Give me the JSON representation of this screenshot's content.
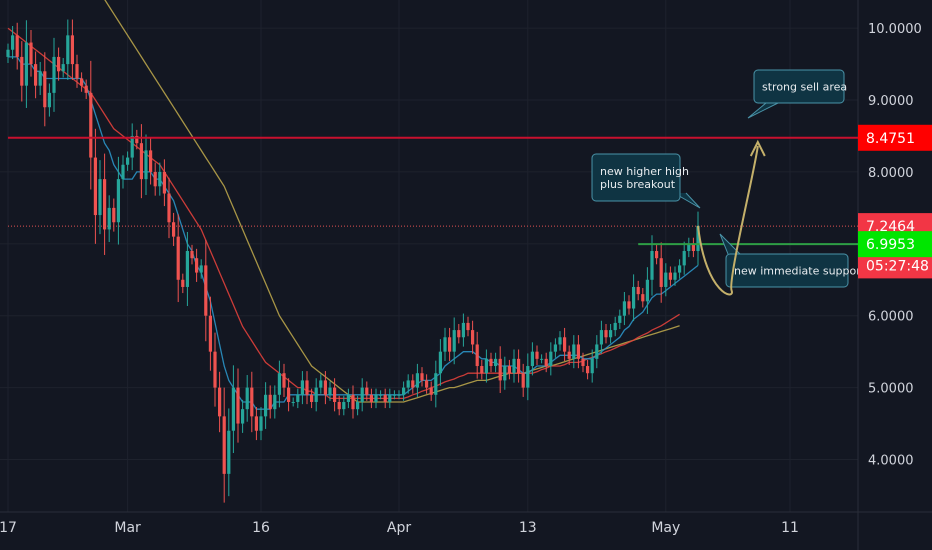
{
  "colors": {
    "background": "#131722",
    "grid": "#1e222d",
    "up": "#26a69a",
    "down": "#ef5350",
    "ma_fast": "#2b93c6",
    "ma_mid": "#e0403b",
    "ma_slow": "#b8a34a",
    "resistance": "#c8102e",
    "support": "#2e9e45",
    "price_line": "#e05252",
    "note_bg": "#0f3443",
    "note_border": "#4a93a8",
    "arrow": "#c4b06a"
  },
  "chart_data": {
    "type": "candlestick",
    "title": "",
    "xlabel": "",
    "ylabel": "",
    "y_axis_position": "right",
    "grid": true,
    "ylim": [
      3.2,
      10.35
    ],
    "y_ticks": [
      "10.0000",
      "9.0000",
      "8.0000",
      "6.0000",
      "5.0000",
      "4.0000"
    ],
    "y_tick_values": [
      10,
      9,
      8,
      6,
      5,
      4
    ],
    "x_ticks": [
      "17",
      "Mar",
      "16",
      "Apr",
      "13",
      "May",
      "11"
    ],
    "x_tick_bar_index": [
      0,
      26,
      55,
      85,
      113,
      143,
      170
    ],
    "last_bar_index": 150,
    "price_tags": [
      {
        "name": "resistance",
        "label": "8.4751",
        "value": 8.4751,
        "color": "#ff0000"
      },
      {
        "name": "last-price",
        "label": "7.2464",
        "value": 7.2464,
        "color": "#f23645"
      },
      {
        "name": "countdown",
        "label": "05:27:48",
        "value": 6.7,
        "color": "#f23645"
      },
      {
        "name": "support",
        "label": "6.9953",
        "value": 6.9953,
        "color": "#00e600"
      }
    ],
    "horizontal_lines": [
      {
        "name": "resistance-line",
        "value": 8.4751,
        "from_bar": 0,
        "style": "solid"
      },
      {
        "name": "last-price-line",
        "value": 7.2464,
        "from_bar": 0,
        "style": "dotted"
      },
      {
        "name": "support-line",
        "value": 6.9953,
        "from_bar": 137,
        "style": "solid"
      }
    ],
    "annotations": [
      {
        "name": "note-strong-sell-area",
        "lines": [
          "strong sell area"
        ]
      },
      {
        "name": "note-new-higher-high",
        "lines": [
          "new higher high",
          "plus breakout"
        ]
      },
      {
        "name": "note-new-immediate-support",
        "lines": [
          "new immediate support"
        ]
      }
    ],
    "projection": {
      "from": [
        150,
        7.25
      ],
      "via": [
        156,
        6.35
      ],
      "to": [
        163,
        8.5
      ]
    },
    "closes": [
      9.7,
      9.9,
      9.6,
      9.2,
      9.8,
      9.5,
      9.2,
      9.4,
      8.9,
      9.1,
      9.6,
      9.4,
      9.5,
      9.9,
      9.5,
      9.3,
      9.2,
      9.1,
      8.2,
      7.4,
      7.9,
      7.2,
      7.5,
      7.3,
      7.9,
      8.1,
      8.2,
      8.5,
      8.4,
      7.9,
      8.3,
      8.0,
      7.8,
      8.0,
      7.7,
      7.3,
      7.1,
      6.5,
      6.4,
      6.9,
      6.8,
      6.6,
      6.7,
      6.0,
      5.5,
      5.0,
      4.6,
      3.8,
      4.4,
      5.0,
      4.5,
      4.7,
      5.0,
      4.6,
      4.4,
      4.6,
      4.9,
      4.7,
      4.9,
      5.2,
      5.0,
      4.8,
      4.8,
      4.9,
      5.1,
      4.9,
      4.8,
      5.0,
      5.1,
      4.9,
      5.0,
      4.8,
      4.7,
      4.8,
      4.9,
      4.7,
      4.8,
      5.0,
      4.9,
      4.8,
      4.9,
      4.9,
      4.8,
      4.9,
      4.9,
      4.9,
      5.0,
      5.1,
      5.0,
      5.2,
      5.1,
      5.0,
      4.9,
      5.2,
      5.5,
      5.7,
      5.5,
      5.8,
      5.7,
      5.9,
      5.8,
      5.6,
      5.3,
      5.2,
      5.4,
      5.3,
      5.4,
      5.1,
      5.3,
      5.2,
      5.4,
      5.2,
      5.0,
      5.3,
      5.5,
      5.4,
      5.4,
      5.3,
      5.5,
      5.6,
      5.7,
      5.5,
      5.4,
      5.6,
      5.4,
      5.3,
      5.2,
      5.4,
      5.6,
      5.8,
      5.7,
      5.8,
      5.9,
      6.0,
      6.2,
      6.1,
      6.4,
      6.3,
      6.2,
      6.5,
      6.9,
      6.8,
      6.4,
      6.6,
      6.5,
      6.6,
      6.7,
      6.9,
      7.0,
      6.9,
      7.25
    ],
    "ma_fast": [
      9.6,
      9.6,
      9.6,
      9.5,
      9.5,
      9.5,
      9.4,
      9.4,
      9.3,
      9.3,
      9.3,
      9.3,
      9.3,
      9.3,
      9.3,
      9.3,
      9.3,
      9.2,
      9.0,
      8.8,
      8.6,
      8.4,
      8.3,
      8.1,
      8.0,
      7.9,
      7.9,
      7.9,
      8.0,
      8.0,
      8.0,
      8.0,
      7.9,
      7.9,
      7.8,
      7.7,
      7.6,
      7.4,
      7.2,
      7.0,
      6.9,
      6.7,
      6.6,
      6.4,
      6.2,
      5.9,
      5.6,
      5.3,
      5.1,
      5.0,
      4.9,
      4.8,
      4.8,
      4.8,
      4.7,
      4.7,
      4.7,
      4.7,
      4.8,
      4.8,
      4.8,
      4.9,
      4.9,
      4.9,
      4.9,
      4.9,
      4.9,
      4.9,
      4.9,
      4.9,
      4.9,
      4.9,
      4.9,
      4.9,
      4.9,
      4.9,
      4.9,
      4.9,
      4.9,
      4.9,
      4.9,
      4.9,
      4.9,
      4.9,
      4.9,
      4.9,
      4.9,
      4.95,
      5.0,
      5.05,
      5.1,
      5.1,
      5.1,
      5.15,
      5.2,
      5.3,
      5.35,
      5.4,
      5.45,
      5.5,
      5.5,
      5.5,
      5.45,
      5.4,
      5.4,
      5.35,
      5.35,
      5.3,
      5.3,
      5.3,
      5.3,
      5.25,
      5.2,
      5.2,
      5.25,
      5.3,
      5.3,
      5.3,
      5.35,
      5.4,
      5.45,
      5.45,
      5.45,
      5.45,
      5.45,
      5.4,
      5.4,
      5.4,
      5.45,
      5.5,
      5.55,
      5.6,
      5.65,
      5.7,
      5.8,
      5.85,
      5.95,
      6.0,
      6.05,
      6.15,
      6.25,
      6.3,
      6.3,
      6.35,
      6.4,
      6.45,
      6.5,
      6.55,
      6.6,
      6.65,
      6.7
    ],
    "ma_mid": [
      10.0,
      9.95,
      9.9,
      9.85,
      9.8,
      9.75,
      9.7,
      9.65,
      9.6,
      9.55,
      9.5,
      9.45,
      9.4,
      9.35,
      9.3,
      9.25,
      9.2,
      9.15,
      9.1,
      9.0,
      8.9,
      8.8,
      8.7,
      8.6,
      8.55,
      8.5,
      8.45,
      8.4,
      8.35,
      8.3,
      8.25,
      8.2,
      8.15,
      8.1,
      8.0,
      7.9,
      7.8,
      7.7,
      7.6,
      7.5,
      7.4,
      7.3,
      7.2,
      7.05,
      6.9,
      6.75,
      6.6,
      6.45,
      6.3,
      6.15,
      6.0,
      5.85,
      5.75,
      5.65,
      5.55,
      5.45,
      5.35,
      5.3,
      5.25,
      5.2,
      5.15,
      5.1,
      5.05,
      5.0,
      5.0,
      4.95,
      4.95,
      4.9,
      4.9,
      4.9,
      4.85,
      4.85,
      4.85,
      4.85,
      4.85,
      4.85,
      4.85,
      4.85,
      4.85,
      4.85,
      4.85,
      4.85,
      4.85,
      4.85,
      4.85,
      4.85,
      4.85,
      4.87,
      4.9,
      4.92,
      4.95,
      4.97,
      5.0,
      5.02,
      5.05,
      5.08,
      5.1,
      5.12,
      5.15,
      5.17,
      5.2,
      5.2,
      5.2,
      5.2,
      5.2,
      5.2,
      5.2,
      5.2,
      5.2,
      5.2,
      5.2,
      5.2,
      5.2,
      5.2,
      5.2,
      5.22,
      5.25,
      5.27,
      5.3,
      5.3,
      5.3,
      5.32,
      5.35,
      5.35,
      5.35,
      5.37,
      5.4,
      5.42,
      5.45,
      5.47,
      5.5,
      5.52,
      5.55,
      5.58,
      5.6,
      5.63,
      5.66,
      5.7,
      5.73,
      5.76,
      5.8,
      5.83,
      5.86,
      5.9,
      5.94,
      5.98,
      6.02
    ],
    "ma_slow": [
      null,
      null,
      null,
      null,
      null,
      null,
      null,
      null,
      null,
      null,
      null,
      null,
      null,
      null,
      null,
      null,
      null,
      null,
      null,
      null,
      null,
      10.4,
      10.3,
      10.2,
      10.1,
      10.0,
      9.9,
      9.8,
      9.7,
      9.6,
      9.5,
      9.4,
      9.3,
      9.2,
      9.1,
      9.0,
      8.9,
      8.8,
      8.7,
      8.6,
      8.5,
      8.4,
      8.3,
      8.2,
      8.1,
      8.0,
      7.9,
      7.8,
      7.65,
      7.5,
      7.35,
      7.2,
      7.05,
      6.9,
      6.75,
      6.6,
      6.45,
      6.3,
      6.15,
      6.0,
      5.9,
      5.8,
      5.7,
      5.6,
      5.5,
      5.4,
      5.3,
      5.25,
      5.2,
      5.15,
      5.1,
      5.05,
      5.0,
      4.95,
      4.9,
      4.85,
      4.8,
      4.8,
      4.8,
      4.8,
      4.8,
      4.8,
      4.8,
      4.8,
      4.8,
      4.8,
      4.8,
      4.82,
      4.84,
      4.86,
      4.88,
      4.9,
      4.92,
      4.94,
      4.96,
      4.98,
      5.0,
      5.0,
      5.02,
      5.04,
      5.06,
      5.08,
      5.1,
      5.1,
      5.1,
      5.12,
      5.14,
      5.16,
      5.18,
      5.2,
      5.2,
      5.2,
      5.2,
      5.22,
      5.24,
      5.26,
      5.28,
      5.3,
      5.3,
      5.32,
      5.34,
      5.36,
      5.38,
      5.4,
      5.42,
      5.44,
      5.46,
      5.48,
      5.5,
      5.52,
      5.54,
      5.56,
      5.58,
      5.6,
      5.62,
      5.64,
      5.66,
      5.68,
      5.7,
      5.72,
      5.74,
      5.76,
      5.78,
      5.8,
      5.82,
      5.84,
      5.86
    ]
  }
}
